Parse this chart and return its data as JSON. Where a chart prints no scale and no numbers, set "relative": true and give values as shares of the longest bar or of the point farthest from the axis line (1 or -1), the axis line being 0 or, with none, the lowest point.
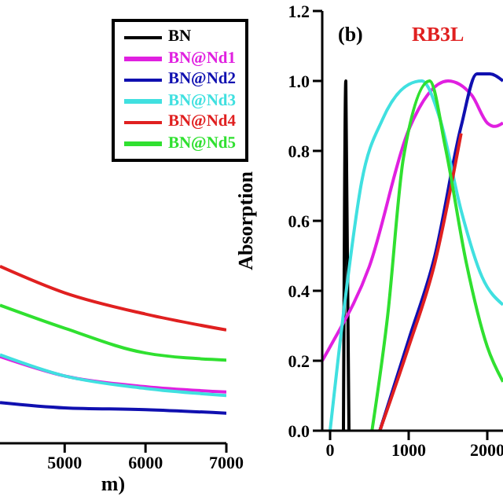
{
  "chart_data": [
    {
      "type": "line",
      "relative": true,
      "xlabel": "m)",
      "xlim": [
        4200,
        7000
      ],
      "xticks": [
        5000,
        6000,
        7000
      ],
      "tick_labels": "x",
      "legend": "top right",
      "grid": false,
      "x": [
        4200,
        5000,
        6000,
        7000
      ],
      "series": [
        {
          "name": "BN",
          "color": "#000000",
          "values": [
            null,
            null,
            null,
            null
          ]
        },
        {
          "name": "BN@Nd1",
          "color": "#e020e0",
          "values": [
            0.49,
            0.38,
            0.32,
            0.29
          ]
        },
        {
          "name": "BN@Nd2",
          "color": "#1010b0",
          "values": [
            0.23,
            0.2,
            0.19,
            0.17
          ]
        },
        {
          "name": "BN@Nd3",
          "color": "#40e0e0",
          "values": [
            0.5,
            0.38,
            0.31,
            0.27
          ]
        },
        {
          "name": "BN@Nd4",
          "color": "#e02020",
          "values": [
            1.0,
            0.85,
            0.73,
            0.64
          ]
        },
        {
          "name": "BN@Nd5",
          "color": "#30e030",
          "values": [
            0.78,
            0.65,
            0.51,
            0.47
          ]
        }
      ]
    },
    {
      "type": "line",
      "title": "RB3L",
      "ylabel": "Absorption",
      "xlim": [
        -100,
        2200
      ],
      "xticks": [
        0,
        1000,
        2000
      ],
      "ylim": [
        0,
        1.2
      ],
      "yticks": [
        {
          "value": 0,
          "label": "0.0"
        },
        0.2,
        0.4,
        0.6,
        0.8,
        {
          "value": 1,
          "label": "1.0"
        },
        1.2
      ],
      "grid": false,
      "legend": false,
      "annotations": [
        "(b)"
      ],
      "series": [
        {
          "color": "#000000",
          "x": [
            170,
            200,
            240
          ],
          "values": [
            0,
            1.0,
            0
          ]
        },
        {
          "color": "#e020e0",
          "x": [
            -100,
            0,
            500,
            1000,
            1500,
            1800,
            2000,
            2100,
            2200
          ],
          "values": [
            0.2,
            0.24,
            0.47,
            0.86,
            1.0,
            0.96,
            0.88,
            0.87,
            0.88
          ]
        },
        {
          "color": "#1010b0",
          "x": [
            633,
            1000,
            1333,
            1667,
            1867,
            2033,
            2200
          ],
          "values": [
            0,
            0.26,
            0.5,
            0.87,
            1.02,
            1.02,
            1.0
          ]
        },
        {
          "color": "#40e0e0",
          "x": [
            0,
            200,
            400,
            667,
            1000,
            1167,
            1400,
            1667,
            1933,
            2200
          ],
          "values": [
            0,
            0.39,
            0.71,
            0.89,
            0.99,
            1.0,
            0.89,
            0.63,
            0.44,
            0.36
          ]
        },
        {
          "color": "#e02020",
          "x": [
            633,
            1000,
            1333,
            1667
          ],
          "values": [
            0,
            0.24,
            0.48,
            0.85
          ]
        },
        {
          "color": "#30e030",
          "x": [
            533,
            733,
            933,
            1267,
            1467,
            1733,
            2000,
            2200
          ],
          "values": [
            0,
            0.33,
            0.78,
            1.0,
            0.81,
            0.48,
            0.24,
            0.14
          ]
        }
      ]
    }
  ]
}
